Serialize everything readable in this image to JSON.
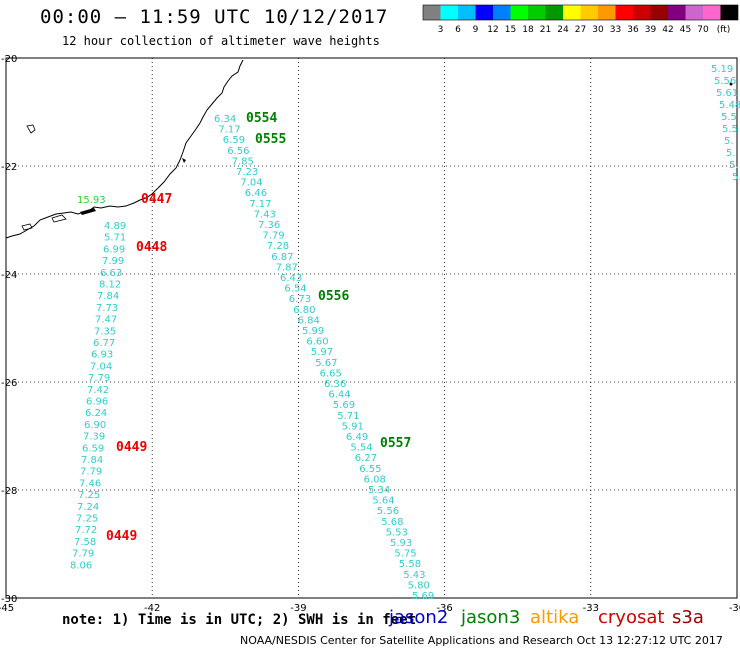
{
  "header": {
    "title": "00:00 – 11:59 UTC 10/12/2017",
    "subtitle": "12 hour collection of altimeter wave heights"
  },
  "colorbar": {
    "unit_label": "(ft)",
    "ticks": [
      "3",
      "6",
      "9",
      "12",
      "15",
      "18",
      "21",
      "24",
      "27",
      "30",
      "33",
      "36",
      "39",
      "42",
      "45",
      "70"
    ],
    "colors": [
      "#808080",
      "#00ffff",
      "#00bfff",
      "#0000ff",
      "#0080ff",
      "#00ff00",
      "#00cc00",
      "#009900",
      "#ffff00",
      "#ffcc00",
      "#ff9900",
      "#ff0000",
      "#cc0000",
      "#990000",
      "#800080",
      "#cc66cc",
      "#ff66cc",
      "#000000"
    ]
  },
  "axes": {
    "lon_labels": [
      "-45",
      "-42",
      "-39",
      "-36",
      "-33",
      "-30"
    ],
    "lat_labels": [
      "-20",
      "-22",
      "-24",
      "-26",
      "-28",
      "-30"
    ]
  },
  "track_colors": {
    "jason3_values": "#33cccc",
    "jason3_label": "#008000",
    "cryosat": "#ee0000",
    "altika_value": "#33cc33"
  },
  "tracks": {
    "coastal_value": "15.93",
    "west": [
      "4.89",
      "5.71",
      "6.99",
      "7.99",
      "6.63",
      "8.12",
      "7.84",
      "7.73",
      "7.47",
      "7.35",
      "6.77",
      "6.93",
      "7.04",
      "7.79",
      "7.42",
      "6.96",
      "6.24",
      "6.90",
      "7.39",
      "6.59",
      "7.84",
      "7.79",
      "7.46",
      "7.25",
      "7.24",
      "7.25",
      "7.72",
      "7.58",
      "7.79",
      "8.06"
    ],
    "diagonal": [
      "6.34",
      "7.17",
      "6.59",
      "6.56",
      "7.85",
      "7.23",
      "7.04",
      "6.46",
      "7.17",
      "7.43",
      "7.36",
      "7.79",
      "7.28",
      "6.87",
      "7.87",
      "6.43",
      "6.54",
      "6.73",
      "6.80",
      "6.84",
      "5.99",
      "6.60",
      "5.97",
      "5.67",
      "6.65",
      "6.36",
      "6.44",
      "5.69",
      "5.71",
      "5.91",
      "6.49",
      "5.54",
      "6.27",
      "6.55",
      "6.08",
      "5.34",
      "5.64",
      "5.56",
      "5.68",
      "5.53",
      "5.93",
      "5.75",
      "5.58",
      "5.43",
      "5.80",
      "5.69"
    ],
    "east": [
      "5.19",
      "5.56",
      "5.61",
      "5.48",
      "5.5",
      "5.5",
      "5.",
      "5.",
      "5.",
      "5."
    ]
  },
  "time_labels": {
    "cryosat": [
      "0447",
      "0448",
      "0449",
      "0449"
    ],
    "jason3": [
      "0554",
      "0555",
      "0556",
      "0557"
    ]
  },
  "note": "note: 1) Time is in UTC; 2) SWH is in feet",
  "legend": [
    {
      "name": "jason2",
      "color": "#0000cc"
    },
    {
      "name": "jason3",
      "color": "#008000"
    },
    {
      "name": "altika",
      "color": "#ff9900"
    },
    {
      "name": "cryosat",
      "color": "#cc0000"
    },
    {
      "name": "s3a",
      "color": "#990000"
    }
  ],
  "footer": "NOAA/NESDIS Center for Satellite Applications and Research    Oct 13 12:27:12 UTC 2017"
}
